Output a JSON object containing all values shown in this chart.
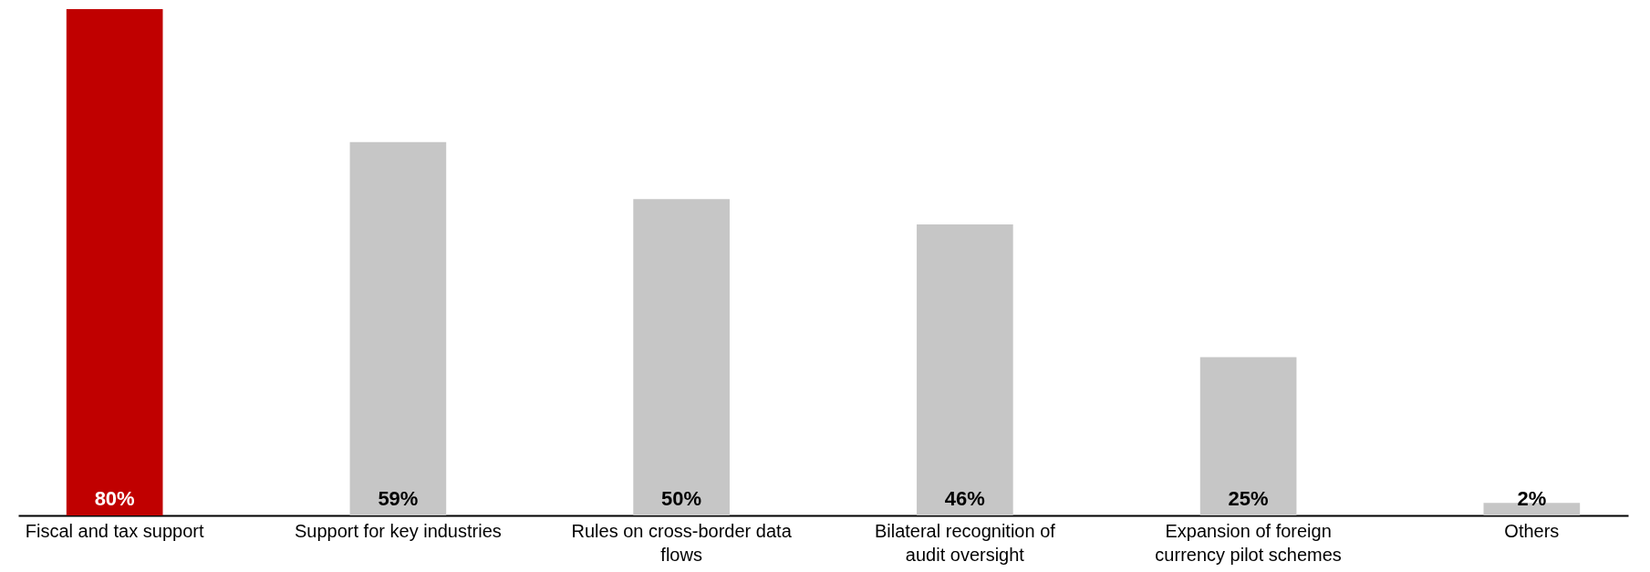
{
  "chart_data": {
    "type": "bar",
    "categories": [
      "Fiscal and tax support",
      "Support for key industries",
      "Rules on cross-border data flows",
      "Bilateral recognition of audit oversight",
      "Expansion of foreign currency pilot schemes",
      "Others"
    ],
    "values": [
      80,
      59,
      50,
      46,
      25,
      2
    ],
    "colors": [
      "#c00000",
      "#c6c6c6",
      "#c6c6c6",
      "#c6c6c6",
      "#c6c6c6",
      "#c6c6c6"
    ],
    "value_labels": [
      "80%",
      "59%",
      "50%",
      "46%",
      "25%",
      "2%"
    ],
    "grid": false
  }
}
